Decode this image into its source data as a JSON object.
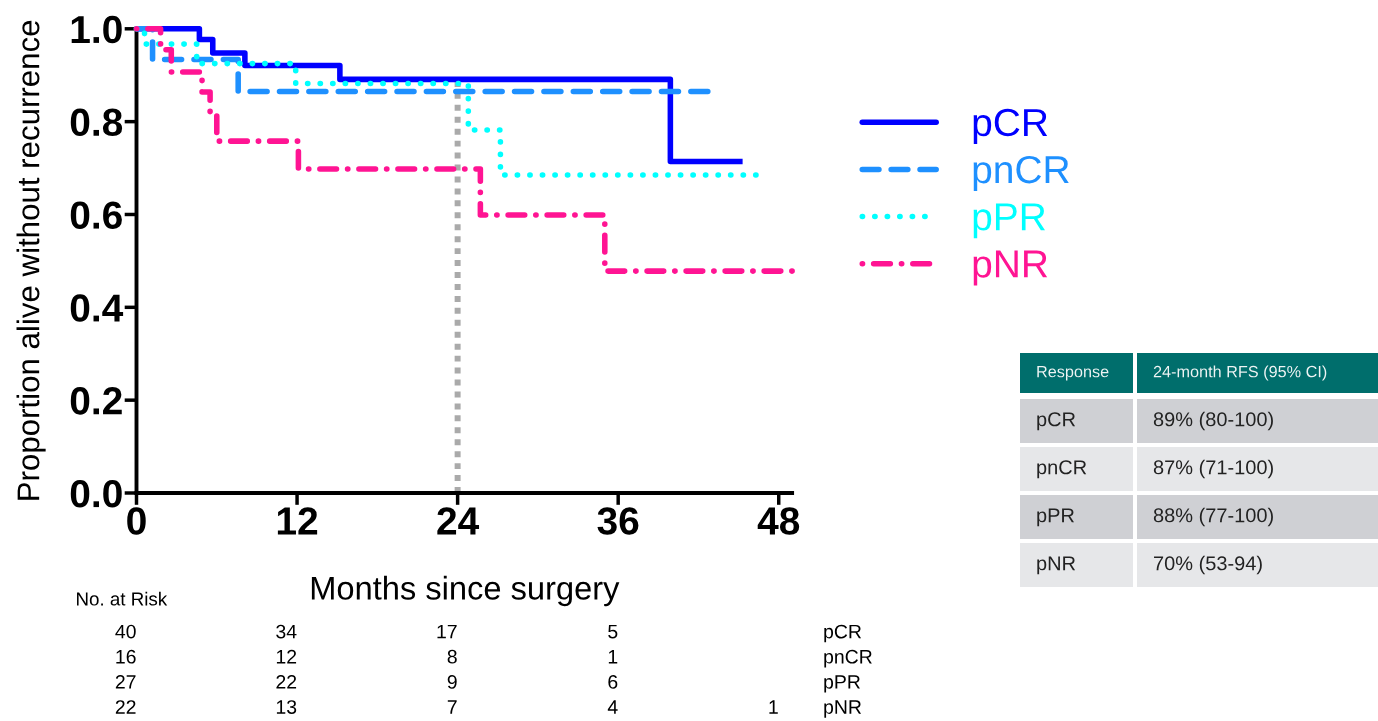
{
  "chart_data": [
    {
      "type": "step",
      "xlabel": "Months since surgery",
      "ylabel": "Proportion alive without recurrence",
      "xlim": [
        0,
        49
      ],
      "ylim": [
        0,
        1.0
      ],
      "xticks": [
        0,
        12,
        24,
        36,
        48
      ],
      "yticks": [
        {
          "value": 0,
          "label": "0.0"
        },
        0.2,
        0.4,
        0.6,
        0.8,
        {
          "value": 1,
          "label": "1.0"
        }
      ],
      "legend": "right",
      "ref_lines": [
        {
          "axis": "x",
          "value": 24,
          "color": "#aaaaaa",
          "line_style": "dotted"
        }
      ],
      "series": [
        {
          "name": "pCR",
          "color": "#0000ff",
          "line_style": "solid",
          "x": [
            0,
            4.7,
            5.7,
            8.1,
            15.2,
            39.9,
            45.3
          ],
          "values": [
            1,
            0.977,
            0.948,
            0.921,
            0.891,
            0.714,
            0.714
          ]
        },
        {
          "name": "pnCR",
          "color": "#1e90ff",
          "line_style": "dashed",
          "x": [
            0,
            1.2,
            7.6,
            42.7
          ],
          "values": [
            1,
            0.934,
            0.865,
            0.865
          ]
        },
        {
          "name": "pPR",
          "color": "#00ffff",
          "line_style": "dotted",
          "x": [
            0,
            0.6,
            4.5,
            11.9,
            24.8,
            27.2,
            46.3
          ],
          "values": [
            1,
            0.967,
            0.925,
            0.882,
            0.782,
            0.685,
            0.685
          ]
        },
        {
          "name": "pNR",
          "color": "#ff1493",
          "line_style": "dashdot",
          "x": [
            0,
            1.8,
            2.6,
            4.9,
            5.5,
            6.0,
            12.1,
            25.7,
            35.0,
            49.0
          ],
          "values": [
            1,
            0.955,
            0.907,
            0.864,
            0.818,
            0.758,
            0.698,
            0.599,
            0.478,
            0.478
          ]
        }
      ]
    },
    {
      "type": "other",
      "title": "No. at Risk",
      "y2_categories": [
        "pCR",
        "pnCR",
        "pPR",
        "pNR"
      ],
      "cell_labels": [
        [
          "40",
          "34",
          "17",
          "5",
          null
        ],
        [
          "16",
          "12",
          "8",
          "1",
          null
        ],
        [
          "27",
          "22",
          "9",
          "6",
          null
        ],
        [
          "22",
          "13",
          "7",
          "4",
          "1"
        ]
      ]
    },
    {
      "type": "other",
      "annotations": [
        "Response",
        "24-month RFS (95% CI)",
        "pCR",
        "89% (80-100)",
        "pnCR",
        "87% (71-100)",
        "pPR",
        "88% (77-100)",
        "pNR",
        "70% (53-94)"
      ]
    }
  ]
}
